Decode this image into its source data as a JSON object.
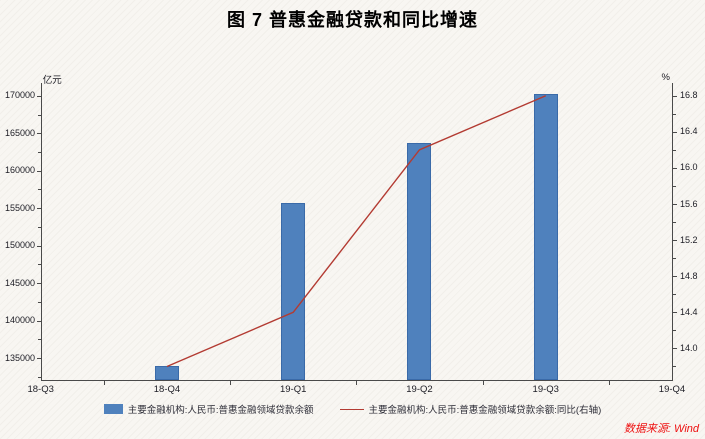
{
  "title": "图 7 普惠金融贷款和同比增速",
  "source_note": "数据来源: Wind",
  "colors": {
    "bar": "#4f81bd",
    "bar_border": "#3a6aa8",
    "line": "#b33b32",
    "axis": "#4a4a4a",
    "text": "#1c1c24",
    "source_text": "#ee1111"
  },
  "chart_data": {
    "type": "bar",
    "subtype": "bar+line dual axis",
    "categories": [
      "18-Q3",
      "18-Q4",
      "19-Q1",
      "19-Q2",
      "19-Q3",
      "19-Q4"
    ],
    "title": "图 7 普惠金融贷款和同比增速",
    "xlabel": "",
    "legend_position": "bottom",
    "grid": false,
    "left_axis": {
      "unit": "亿元",
      "min": 132090,
      "max": 171570,
      "tick_values": [
        170000,
        165000,
        160000,
        155000,
        150000,
        145000,
        140000,
        135000
      ],
      "tick_labels": [
        "170000",
        "165000",
        "160000",
        "155000",
        "150000",
        "145000",
        "140000",
        "135000"
      ],
      "minor_ticks": [
        167500,
        162500,
        157500,
        152500,
        147500,
        142500,
        137500,
        132500
      ]
    },
    "right_axis": {
      "unit": "%",
      "min": 13.65,
      "max": 16.93,
      "tick_values": [
        16.8,
        16.4,
        16.0,
        15.6,
        15.2,
        14.8,
        14.4,
        14.0
      ],
      "tick_labels": [
        "16.8",
        "16.4",
        "16.0",
        "15.6",
        "15.2",
        "14.8",
        "14.4",
        "14.0"
      ],
      "minor_ticks": [
        16.6,
        16.2,
        15.8,
        15.4,
        15.0,
        14.6,
        14.2,
        13.8
      ]
    },
    "series": [
      {
        "name": "主要金融机构:人民币:普惠金融领域贷款余额",
        "type": "bar",
        "axis": "left",
        "values": [
          null,
          133900,
          155700,
          163700,
          170300,
          null
        ]
      },
      {
        "name": "主要金融机构:人民币:普惠金融领域贷款余额:同比(右轴)",
        "type": "line",
        "axis": "right",
        "values": [
          null,
          13.8,
          14.4,
          16.2,
          16.8,
          null
        ]
      }
    ]
  }
}
